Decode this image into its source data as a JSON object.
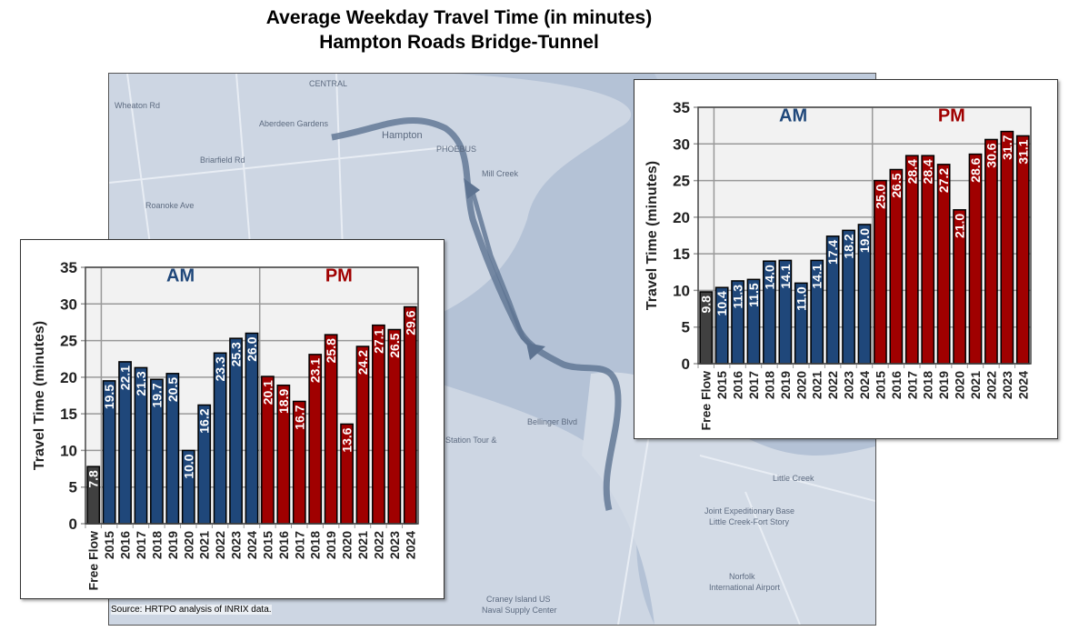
{
  "title_line1": "Average Weekday Travel Time (in minutes)",
  "title_line2": "Hampton Roads Bridge-Tunnel",
  "source": "Source:  HRTPO analysis of INRIX data.",
  "map_labels": [
    "Aberdeen Gardens",
    "Hampton",
    "PHOEBUS",
    "CENTRAL",
    "Mill Creek",
    "Station Tour &",
    "Bellinger Blvd",
    "Joint Expeditionary Base",
    "Little Creek-Fort Story",
    "Norfolk",
    "International Airport",
    "Craney Island US",
    "Naval Supply Center",
    "Little Creek",
    "Wheaton Rd",
    "Roanoke Ave",
    "Briarfield Rd"
  ],
  "colors": {
    "free_flow": "#404040",
    "am": "#1f477a",
    "pm": "#a00000",
    "am_label": "#1f477a",
    "pm_label": "#a00000",
    "plot_bg": "#f2f2f2",
    "map": "#cdd6e3",
    "route": "#5d7391"
  },
  "chart_data": [
    {
      "type": "bar",
      "ylabel": "Travel Time (minutes)",
      "ylim": [
        0,
        35
      ],
      "yticks": [
        0,
        5,
        10,
        15,
        20,
        25,
        30,
        35
      ],
      "grid": true,
      "group_labels": [
        "AM",
        "PM"
      ],
      "categories": [
        "Free Flow",
        "2015",
        "2016",
        "2017",
        "2018",
        "2019",
        "2020",
        "2021",
        "2022",
        "2023",
        "2024",
        "2015",
        "2016",
        "2017",
        "2018",
        "2019",
        "2020",
        "2021",
        "2022",
        "2023",
        "2024"
      ],
      "groups": [
        "Free Flow",
        "AM",
        "AM",
        "AM",
        "AM",
        "AM",
        "AM",
        "AM",
        "AM",
        "AM",
        "AM",
        "PM",
        "PM",
        "PM",
        "PM",
        "PM",
        "PM",
        "PM",
        "PM",
        "PM",
        "PM"
      ],
      "values": [
        7.8,
        19.5,
        22.1,
        21.3,
        19.7,
        20.5,
        10.0,
        16.2,
        23.3,
        25.3,
        26.0,
        20.1,
        18.9,
        16.7,
        23.1,
        25.8,
        13.6,
        24.2,
        27.1,
        26.5,
        29.6
      ]
    },
    {
      "type": "bar",
      "ylabel": "Travel Time (minutes)",
      "ylim": [
        0,
        35
      ],
      "yticks": [
        0,
        5,
        10,
        15,
        20,
        25,
        30,
        35
      ],
      "grid": true,
      "group_labels": [
        "AM",
        "PM"
      ],
      "categories": [
        "Free Flow",
        "2015",
        "2016",
        "2017",
        "2018",
        "2019",
        "2020",
        "2021",
        "2022",
        "2023",
        "2024",
        "2015",
        "2016",
        "2017",
        "2018",
        "2019",
        "2020",
        "2021",
        "2022",
        "2023",
        "2024"
      ],
      "groups": [
        "Free Flow",
        "AM",
        "AM",
        "AM",
        "AM",
        "AM",
        "AM",
        "AM",
        "AM",
        "AM",
        "AM",
        "PM",
        "PM",
        "PM",
        "PM",
        "PM",
        "PM",
        "PM",
        "PM",
        "PM",
        "PM"
      ],
      "values": [
        9.8,
        10.4,
        11.3,
        11.5,
        14.0,
        14.1,
        11.0,
        14.1,
        17.4,
        18.2,
        19.0,
        25.0,
        26.5,
        28.4,
        28.4,
        27.2,
        21.0,
        28.6,
        30.6,
        31.7,
        31.1
      ]
    }
  ]
}
